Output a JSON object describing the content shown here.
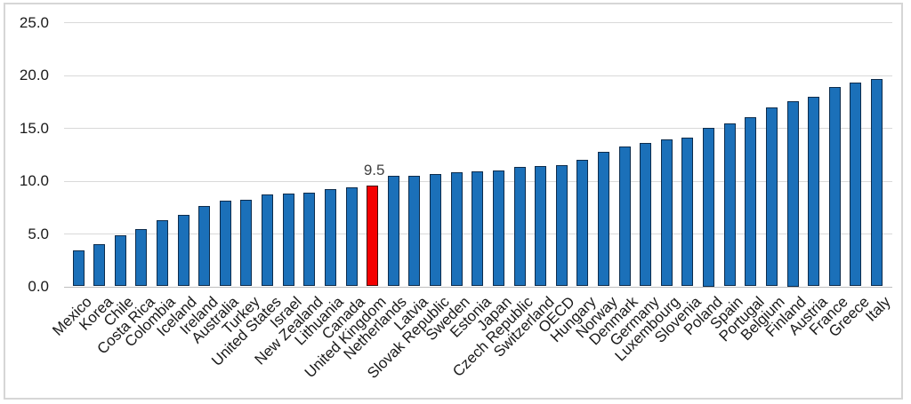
{
  "figure": {
    "background_color": "#ffffff",
    "border_color": "#d6d6d6"
  },
  "chart_data": {
    "type": "bar",
    "title": "",
    "xlabel": "",
    "ylabel": "",
    "categories": [
      "Mexico",
      "Korea",
      "Chile",
      "Costa Rica",
      "Colombia",
      "Iceland",
      "Ireland",
      "Australia",
      "Turkey",
      "United States",
      "Israel",
      "New Zealand",
      "Lithuania",
      "Canada",
      "United Kingdom",
      "Netherlands",
      "Latvia",
      "Slovak Republic",
      "Sweden",
      "Estonia",
      "Japan",
      "Czech Republic",
      "Switzerland",
      "OECD",
      "Hungary",
      "Norway",
      "Denmark",
      "Germany",
      "Luxembourg",
      "Slovenia",
      "Poland",
      "Spain",
      "Portugal",
      "Belgium",
      "Finland",
      "Austria",
      "France",
      "Greece",
      "Italy"
    ],
    "values": [
      3.4,
      4.0,
      4.8,
      5.4,
      6.3,
      6.8,
      7.6,
      8.1,
      8.2,
      8.7,
      8.8,
      8.9,
      9.2,
      9.4,
      9.5,
      10.5,
      10.5,
      10.6,
      10.8,
      10.9,
      11.0,
      11.3,
      11.4,
      11.5,
      12.0,
      12.7,
      13.2,
      13.6,
      13.9,
      14.1,
      15.0,
      15.4,
      16.0,
      16.9,
      17.5,
      17.9,
      18.9,
      19.3,
      19.6
    ],
    "highlight": {
      "category": "United Kingdom",
      "value_label": "9.5",
      "bar_color": "#f40000",
      "bar_border_color": "#430c0c"
    },
    "bar_color": "#1b70b9",
    "bar_border_color": "#0d2c4c",
    "ylim": [
      0,
      25
    ],
    "ytick_step": 5,
    "ytick_labels": [
      "25.0",
      "20.0",
      "15.0",
      "10.0",
      "5.0",
      "0.0"
    ],
    "grid": true,
    "gridline_color": "#d9d9d9",
    "legend": "none",
    "x_label_rotation_deg": 45
  }
}
